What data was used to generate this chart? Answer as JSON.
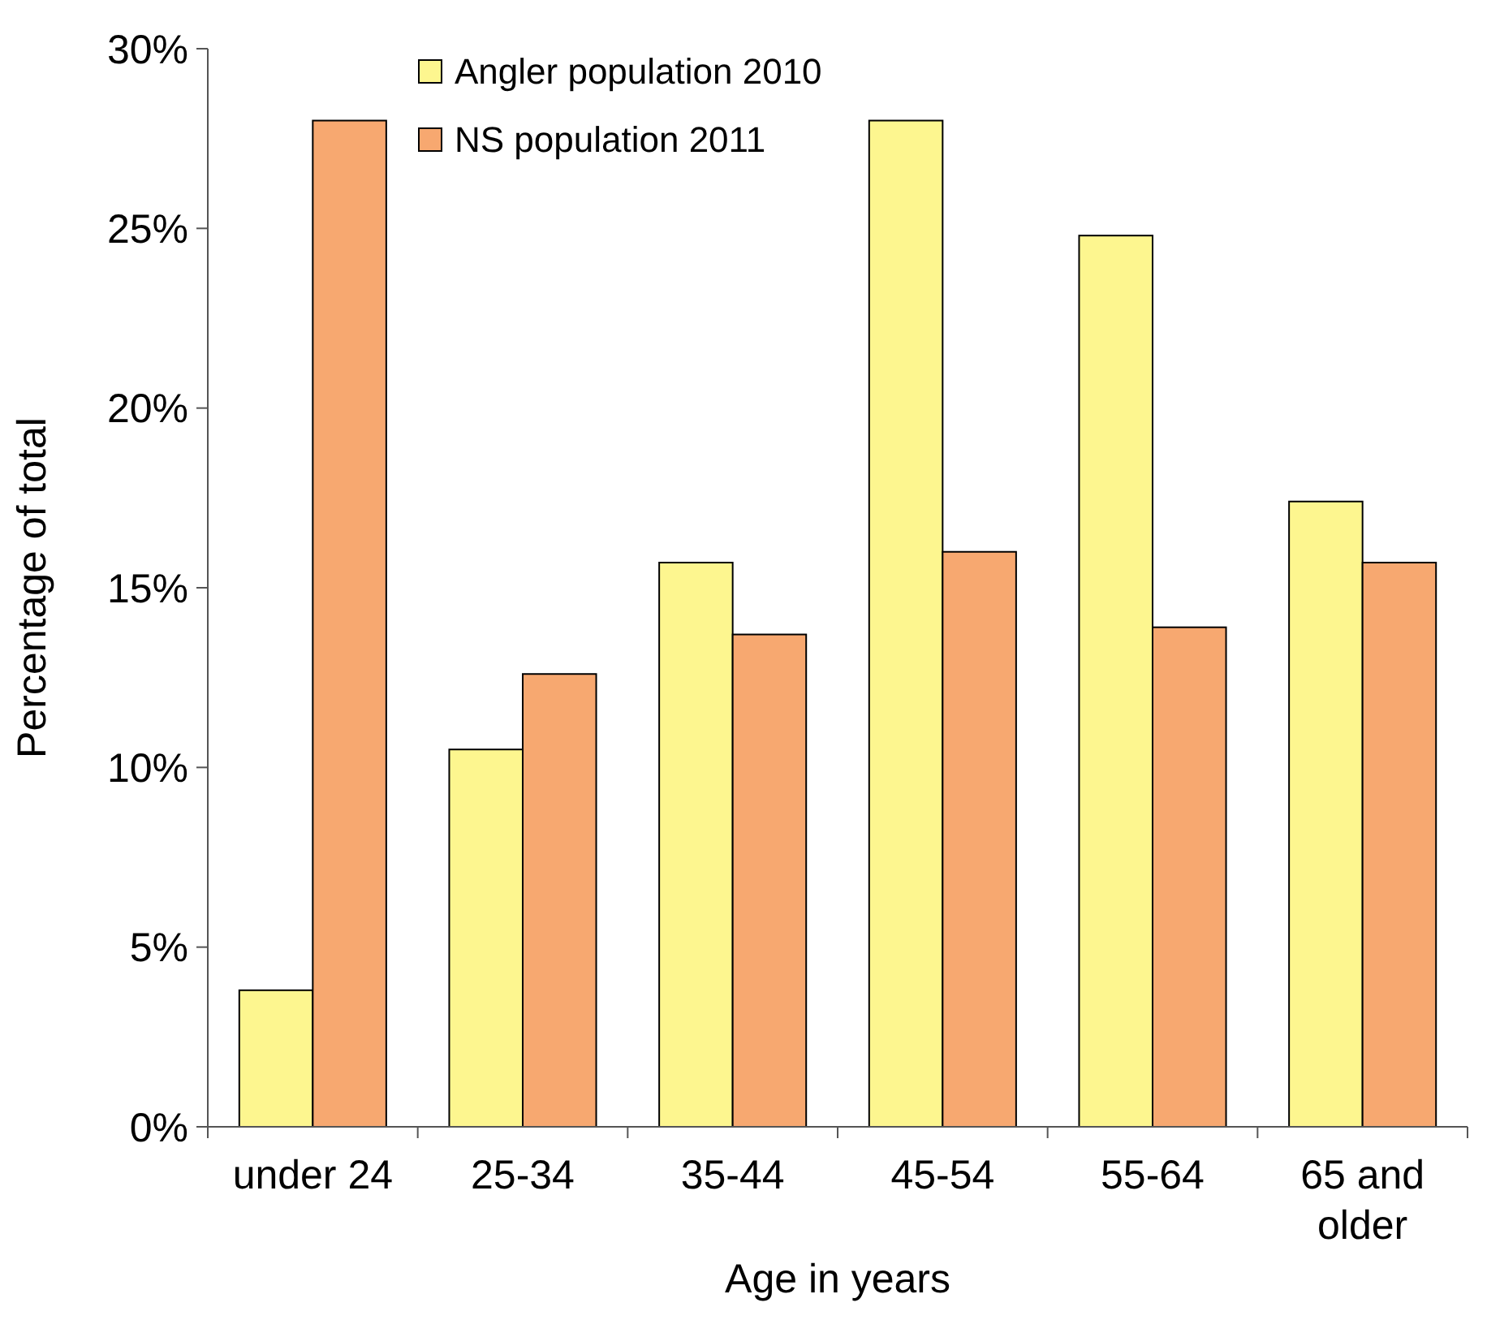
{
  "chart_data": {
    "type": "bar",
    "xlabel": "Age in years",
    "ylabel": "Percentage of  total",
    "categories": [
      "under 24",
      "25-34",
      "35-44",
      "45-54",
      "55-64",
      "65 and older"
    ],
    "series": [
      {
        "name": "Angler population 2010",
        "color": "#fdf68f",
        "values": [
          3.8,
          10.5,
          15.7,
          28.0,
          24.8,
          17.4
        ]
      },
      {
        "name": "NS population 2011",
        "color": "#f7a870",
        "values": [
          28.0,
          12.6,
          13.7,
          16.0,
          13.9,
          15.7
        ]
      }
    ],
    "ylim": [
      0,
      30
    ],
    "yticks": [
      {
        "value": 0,
        "label": "0%"
      },
      {
        "value": 5,
        "label": "5%"
      },
      {
        "value": 10,
        "label": "10%"
      },
      {
        "value": 15,
        "label": "15%"
      },
      {
        "value": 20,
        "label": "20%"
      },
      {
        "value": 25,
        "label": "25%"
      },
      {
        "value": 30,
        "label": "30%"
      }
    ],
    "grid": false,
    "legend": "top left"
  }
}
